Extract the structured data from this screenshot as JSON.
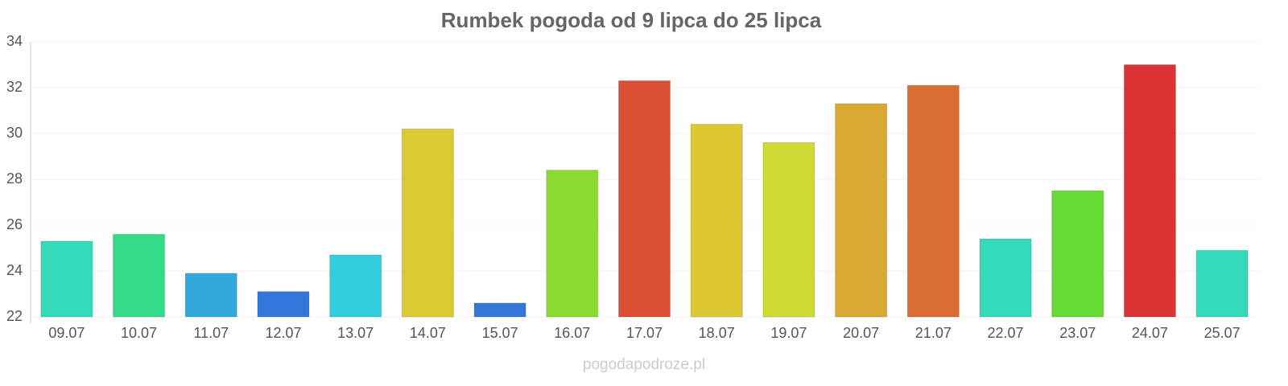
{
  "chart_data": {
    "type": "bar",
    "title": "Rumbek pogoda od 9 lipca do 25 lipca",
    "categories": [
      "09.07",
      "10.07",
      "11.07",
      "12.07",
      "13.07",
      "14.07",
      "15.07",
      "16.07",
      "17.07",
      "18.07",
      "19.07",
      "20.07",
      "21.07",
      "22.07",
      "23.07",
      "24.07",
      "25.07"
    ],
    "values": [
      25.3,
      25.6,
      23.9,
      23.1,
      24.7,
      30.2,
      22.6,
      28.4,
      32.3,
      30.4,
      29.6,
      31.3,
      32.1,
      25.4,
      27.5,
      33.0,
      24.9
    ],
    "colors": [
      "#33dbbb",
      "#33db88",
      "#33a8db",
      "#3377db",
      "#33cedb",
      "#dbcb33",
      "#3377db",
      "#8bdb33",
      "#db5033",
      "#dbc833",
      "#cfdb33",
      "#dba833",
      "#db6e33",
      "#33dbbb",
      "#66db33",
      "#db3333",
      "#33dbbb"
    ],
    "ylim": [
      22,
      34
    ],
    "yticks": [
      22,
      24,
      26,
      28,
      30,
      32,
      34
    ],
    "grid": true,
    "source": "pogodapodroze.pl"
  }
}
